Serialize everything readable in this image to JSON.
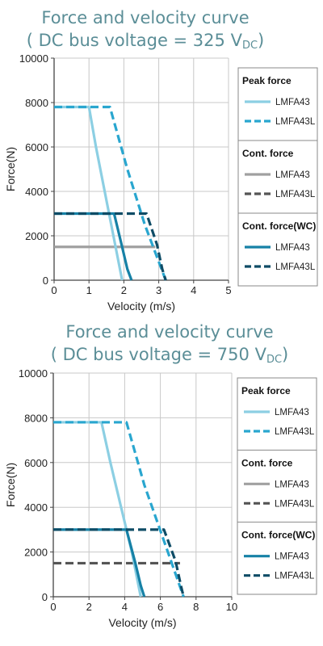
{
  "chart_data": [
    {
      "type": "line",
      "title": "Force and velocity curve",
      "subtitle": "( DC bus voltage = 325 V",
      "subtitle_sub": "DC",
      "subtitle_end": ")",
      "xlabel": "Velocity (m/s)",
      "ylabel": "Force(N)",
      "xlim": [
        0,
        5
      ],
      "ylim": [
        0,
        10000
      ],
      "xticks": [
        0,
        1,
        2,
        3,
        4,
        5
      ],
      "yticks": [
        0,
        2000,
        4000,
        6000,
        8000,
        10000
      ],
      "grid": true,
      "legend_placement": "right",
      "legend_groups": [
        {
          "title": "Peak force",
          "entries": [
            0,
            1
          ]
        },
        {
          "title": "Cont. force",
          "entries": [
            2,
            3
          ]
        },
        {
          "title": "Cont. force(WC)",
          "entries": [
            4,
            5
          ]
        }
      ],
      "series": [
        {
          "name": "LMFA43",
          "group": "Peak force",
          "color": "#8ccfe3",
          "dashed": false,
          "x": [
            0,
            1.0,
            1.2,
            1.45,
            1.7,
            1.95
          ],
          "y": [
            7800,
            7800,
            6000,
            4000,
            2000,
            0
          ]
        },
        {
          "name": "LMFA43L",
          "group": "Peak force",
          "color": "#29a6cf",
          "dashed": true,
          "x": [
            0,
            1.6,
            2.1,
            2.6,
            3.2
          ],
          "y": [
            7800,
            7800,
            5000,
            2500,
            0
          ]
        },
        {
          "name": "LMFA43",
          "group": "Cont. force",
          "color": "#a0a0a0",
          "dashed": false,
          "x": [
            0,
            2.9
          ],
          "y": [
            1500,
            1500
          ]
        },
        {
          "name": "LMFA43L",
          "group": "Cont. force",
          "color": "#555555",
          "dashed": true,
          "x": [],
          "y": []
        },
        {
          "name": "LMFA43",
          "group": "Cont. force(WC)",
          "color": "#1681a6",
          "dashed": false,
          "x": [
            0,
            1.72,
            1.95,
            2.1,
            2.22
          ],
          "y": [
            3000,
            3000,
            1500,
            500,
            0
          ]
        },
        {
          "name": "LMFA43L",
          "group": "Cont. force(WC)",
          "color": "#0e4c66",
          "dashed": true,
          "x": [
            0,
            2.65,
            2.95,
            3.1,
            3.2
          ],
          "y": [
            3000,
            3000,
            1600,
            500,
            0
          ]
        }
      ]
    },
    {
      "type": "line",
      "title": "Force and velocity curve",
      "subtitle": "( DC bus voltage = 750 V",
      "subtitle_sub": "DC",
      "subtitle_end": ")",
      "xlabel": "Velocity (m/s)",
      "ylabel": "Force(N)",
      "xlim": [
        0,
        10
      ],
      "ylim": [
        0,
        10000
      ],
      "xticks": [
        0,
        2,
        4,
        6,
        8,
        10
      ],
      "yticks": [
        0,
        2000,
        4000,
        6000,
        8000,
        10000
      ],
      "grid": true,
      "legend_placement": "right",
      "legend_groups": [
        {
          "title": "Peak force",
          "entries": [
            0,
            1
          ]
        },
        {
          "title": "Cont. force",
          "entries": [
            2,
            3
          ]
        },
        {
          "title": "Cont. force(WC)",
          "entries": [
            4,
            5
          ]
        }
      ],
      "series": [
        {
          "name": "LMFA43",
          "group": "Peak force",
          "color": "#8ccfe3",
          "dashed": false,
          "x": [
            0,
            2.7,
            3.2,
            3.8,
            4.4,
            4.9
          ],
          "y": [
            7800,
            7800,
            6000,
            4000,
            2000,
            0
          ]
        },
        {
          "name": "LMFA43L",
          "group": "Peak force",
          "color": "#29a6cf",
          "dashed": true,
          "x": [
            0,
            4.1,
            5.1,
            6.2,
            7.3
          ],
          "y": [
            7800,
            7800,
            5000,
            2500,
            0
          ]
        },
        {
          "name": "LMFA43",
          "group": "Cont. force",
          "color": "#a0a0a0",
          "dashed": false,
          "x": [],
          "y": []
        },
        {
          "name": "LMFA43L",
          "group": "Cont. force",
          "color": "#555555",
          "dashed": true,
          "x": [
            0,
            7.1
          ],
          "y": [
            1500,
            1500
          ]
        },
        {
          "name": "LMFA43",
          "group": "Cont. force(WC)",
          "color": "#1681a6",
          "dashed": false,
          "x": [
            0,
            4.1,
            4.6,
            4.9,
            5.1
          ],
          "y": [
            3000,
            3000,
            1500,
            500,
            0
          ]
        },
        {
          "name": "LMFA43L",
          "group": "Cont. force(WC)",
          "color": "#0e4c66",
          "dashed": true,
          "x": [
            0,
            6.2,
            6.85,
            7.15,
            7.3
          ],
          "y": [
            3000,
            3000,
            1600,
            500,
            0
          ]
        }
      ]
    }
  ]
}
